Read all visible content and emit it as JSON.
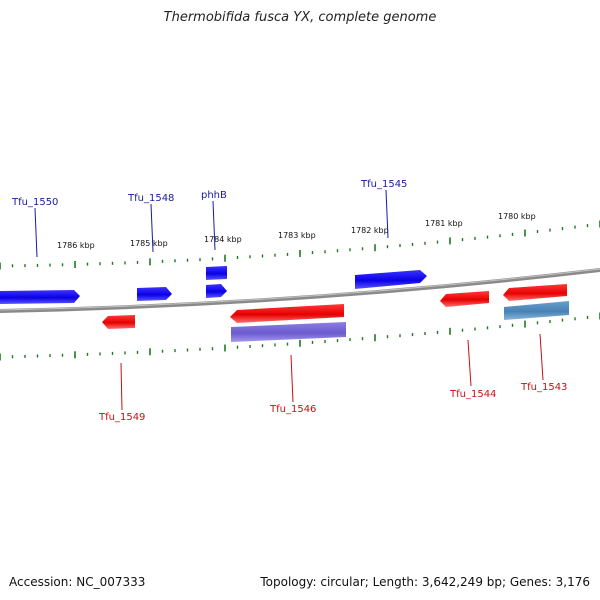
{
  "title": "Thermobifida fusca YX, complete genome",
  "footer": {
    "accession": "Accession: NC_007333",
    "summary": "Topology: circular; Length: 3,642,249 bp; Genes: 3,176"
  },
  "colors": {
    "forward_gene": "#0a00e6",
    "reverse_gene": "#e60000",
    "feature_purple": "#6a5acd",
    "feature_steel": "#4682b4",
    "forward_label": "#1a1aa0",
    "reverse_label": "#c81010",
    "tick": "#1e7a1e",
    "backbone": "#8a8a8a"
  },
  "scale": {
    "unit": "kbp",
    "tick_labels": [
      "1786 kbp",
      "1785 kbp",
      "1784 kbp",
      "1783 kbp",
      "1782 kbp",
      "1781 kbp",
      "1780 kbp"
    ]
  },
  "genes": {
    "forward": [
      {
        "label": "Tfu_1550"
      },
      {
        "label": "Tfu_1548"
      },
      {
        "label": "phhB"
      },
      {
        "label": "Tfu_1545"
      }
    ],
    "reverse": [
      {
        "label": "Tfu_1549"
      },
      {
        "label": "Tfu_1546"
      },
      {
        "label": "Tfu_1544"
      },
      {
        "label": "Tfu_1543"
      }
    ]
  }
}
